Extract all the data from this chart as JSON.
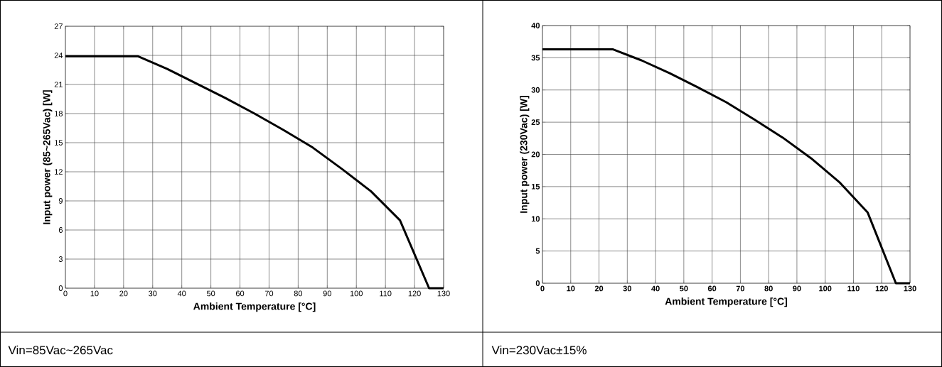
{
  "chart_data": [
    {
      "type": "line",
      "xlabel": "Ambient Temperature [°C]",
      "ylabel": "Input power (85~265Vac) [W]",
      "annotations": [
        "Vin=85Vac~265Vac"
      ],
      "x": [
        0,
        25,
        35,
        45,
        55,
        65,
        75,
        85,
        95,
        105,
        115,
        125,
        130
      ],
      "series": [
        {
          "color": "#000000",
          "values": [
            23.9,
            23.9,
            22.6,
            21.1,
            19.6,
            18.0,
            16.3,
            14.5,
            12.3,
            10.0,
            7.0,
            0,
            0
          ]
        }
      ],
      "xlim": [
        0,
        130
      ],
      "ylim": [
        0,
        27
      ],
      "xticks": [
        0,
        10,
        20,
        30,
        40,
        50,
        60,
        70,
        80,
        90,
        100,
        110,
        120,
        130
      ],
      "yticks": [
        0,
        3,
        6,
        9,
        12,
        15,
        18,
        21,
        24,
        27
      ],
      "grid": true
    },
    {
      "type": "line",
      "xlabel": "Ambient Temperature [°C]",
      "ylabel": "Input power (230Vac) [W]",
      "annotations": [
        "Vin=230Vac±15%"
      ],
      "x": [
        0,
        25,
        35,
        45,
        55,
        65,
        75,
        85,
        95,
        105,
        115,
        125,
        130
      ],
      "series": [
        {
          "color": "#000000",
          "values": [
            36.3,
            36.3,
            34.6,
            32.6,
            30.4,
            28.1,
            25.4,
            22.6,
            19.4,
            15.7,
            11.0,
            0,
            0
          ]
        }
      ],
      "xlim": [
        0,
        130
      ],
      "ylim": [
        0,
        40
      ],
      "xticks": [
        0,
        10,
        20,
        30,
        40,
        50,
        60,
        70,
        80,
        90,
        100,
        110,
        120,
        130
      ],
      "yticks": [
        0,
        5,
        10,
        15,
        20,
        25,
        30,
        35,
        40
      ],
      "grid": true
    }
  ]
}
